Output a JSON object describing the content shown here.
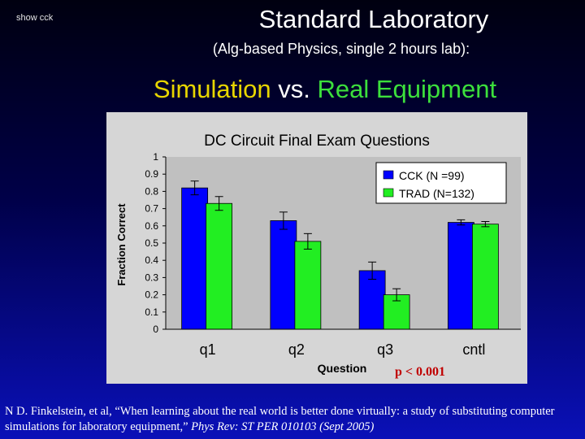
{
  "slide": {
    "corner_note": "show cck",
    "title": "Standard Laboratory",
    "subtitle": "(Alg-based Physics, single 2 hours lab):",
    "heading_part1": "Simulation",
    "heading_part2": " vs. ",
    "heading_part3": "Real Equipment",
    "p_value": "p < 0.001",
    "citation_text": "N D. Finkelstein, et al, “When learning about the real world is better done virtually: a study of substituting computer simulations for laboratory equipment,” ",
    "citation_journal": "Phys Rev: ST PER 010103 (Sept 2005)"
  },
  "colors": {
    "cck": "#0000ff",
    "trad": "#22ee22",
    "panel": "#d6d6d6",
    "plot": "#c0c0c0"
  },
  "chart_data": {
    "type": "bar",
    "title": "DC Circuit Final Exam Questions",
    "xlabel": "Question",
    "ylabel": "Fraction Correct",
    "categories": [
      "q1",
      "q2",
      "q3",
      "cntl"
    ],
    "ylim": [
      0,
      1
    ],
    "yticks": [
      "0",
      "0.1",
      "0.2",
      "0.3",
      "0.4",
      "0.5",
      "0.6",
      "0.7",
      "0.8",
      "0.9",
      "1"
    ],
    "grid": false,
    "legend_position": "top-right",
    "series": [
      {
        "name": "CCK (N =99)",
        "values": [
          0.82,
          0.63,
          0.34,
          0.62
        ],
        "errors": [
          0.04,
          0.05,
          0.05,
          0.015
        ]
      },
      {
        "name": "TRAD (N=132)",
        "values": [
          0.73,
          0.51,
          0.2,
          0.61
        ],
        "errors": [
          0.04,
          0.045,
          0.035,
          0.015
        ]
      }
    ]
  }
}
